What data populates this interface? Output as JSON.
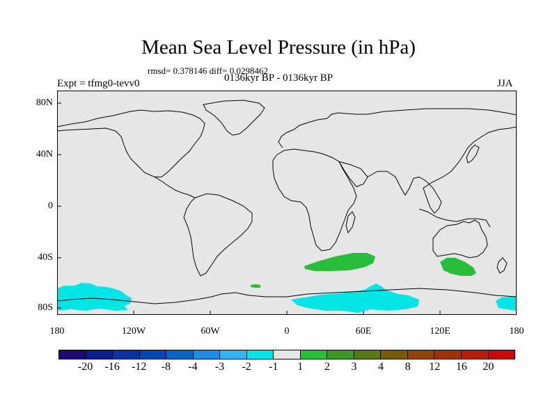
{
  "header": {
    "title": "Mean Sea Level Pressure (in hPa)",
    "stats": "rmsd= 0.378146 diff= 0.0298462",
    "expt": "Expt = tfmg0-tevv0",
    "period": "0136kyr BP - 0136kyr BP",
    "season": "JJA"
  },
  "map": {
    "ocean_color": "#e6e6e6",
    "lat_labels": [
      "80N",
      "40N",
      "0",
      "40S",
      "80S"
    ],
    "lon_labels": [
      "180",
      "120W",
      "60W",
      "0",
      "60E",
      "120E",
      "180"
    ]
  },
  "colorbar": {
    "labels": [
      "-20",
      "-16",
      "-12",
      "-8",
      "-4",
      "-3",
      "-2",
      "-1",
      "1",
      "2",
      "3",
      "4",
      "8",
      "12",
      "16",
      "20"
    ],
    "colors": [
      "#1e0a6e",
      "#0a1e8c",
      "#0a32a0",
      "#0046b4",
      "#0a64c8",
      "#1e8ce6",
      "#32b4f0",
      "#00e6e6",
      "#e6e6e6",
      "#28be3c",
      "#3c9628",
      "#5a7814",
      "#785a0a",
      "#8c460a",
      "#a0320a",
      "#b41e0a",
      "#c80a0a"
    ]
  }
}
